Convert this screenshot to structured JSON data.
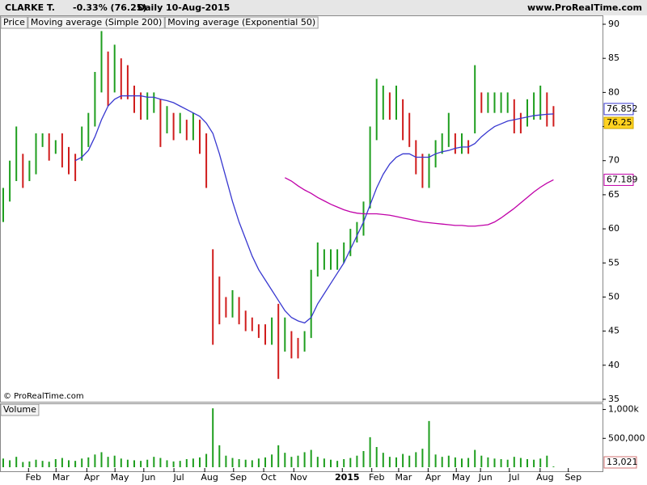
{
  "header": {
    "symbol": "CLARKE T.",
    "change": "-0.33% (76.25)",
    "period": "Daily",
    "date": "10-Aug-2015",
    "site": "www.ProRealTime.com",
    "copyright": "© ProRealTime.com"
  },
  "chart_data": [
    {
      "type": "ohlc",
      "xlim": [
        0,
        92
      ],
      "ylim": [
        35,
        90
      ],
      "yticks": [
        35,
        40,
        45,
        50,
        55,
        60,
        65,
        70,
        75,
        80,
        85,
        90
      ],
      "last_price": 76.25,
      "x": [
        0,
        1,
        2,
        3,
        4,
        5,
        6,
        7,
        8,
        9,
        10,
        11,
        12,
        13,
        14,
        15,
        16,
        17,
        18,
        19,
        20,
        21,
        22,
        23,
        24,
        25,
        26,
        27,
        28,
        29,
        30,
        31,
        32,
        33,
        34,
        35,
        36,
        37,
        38,
        39,
        40,
        41,
        42,
        43,
        44,
        45,
        46,
        47,
        48,
        49,
        50,
        51,
        52,
        53,
        54,
        55,
        56,
        57,
        58,
        59,
        60,
        61,
        62,
        63,
        64,
        65,
        66,
        67,
        68,
        69,
        70,
        71,
        72,
        73,
        74,
        75,
        76,
        77,
        78,
        79,
        80,
        81,
        82,
        83,
        84
      ],
      "series": [
        {
          "name": "Price",
          "color": "#1e9e1e",
          "down_color": "#d01c1c",
          "high": [
            66,
            70,
            75,
            71,
            70,
            74,
            74,
            74,
            73,
            74,
            72,
            71,
            75,
            77,
            83,
            89,
            86,
            87,
            85,
            84,
            81,
            80,
            80,
            80,
            79,
            78,
            77,
            77,
            76,
            77,
            76,
            74,
            57,
            53,
            50,
            51,
            50,
            48,
            47,
            46,
            46,
            47,
            49,
            47,
            45,
            44,
            45,
            54,
            58,
            57,
            57,
            57,
            58,
            60,
            61,
            64,
            75,
            82,
            81,
            80,
            81,
            79,
            77,
            73,
            71,
            71,
            73,
            74,
            77,
            74,
            74,
            73,
            84,
            80,
            80,
            80,
            80,
            80,
            79,
            77,
            79,
            80,
            81,
            80,
            78
          ],
          "low": [
            61,
            64,
            67,
            66,
            67,
            68,
            72,
            70,
            71,
            69,
            68,
            67,
            70,
            72,
            75,
            80,
            78,
            80,
            79,
            79,
            77,
            76,
            76,
            77,
            72,
            74,
            73,
            74,
            73,
            73,
            71,
            66,
            43,
            46,
            47,
            47,
            46,
            45,
            45,
            44,
            43,
            43,
            38,
            42,
            41,
            41,
            42,
            44,
            53,
            54,
            54,
            54,
            55,
            56,
            58,
            59,
            63,
            73,
            76,
            76,
            76,
            73,
            72,
            68,
            66,
            66,
            69,
            71,
            72,
            71,
            71,
            71,
            74,
            77,
            77,
            77,
            77,
            77,
            74,
            74,
            75,
            76,
            76,
            75,
            75
          ]
        },
        {
          "name": "Moving average (Simple 200)",
          "color": "#c000a8",
          "values": [
            null,
            null,
            null,
            null,
            null,
            null,
            null,
            null,
            null,
            null,
            null,
            null,
            null,
            null,
            null,
            null,
            null,
            null,
            null,
            null,
            null,
            null,
            null,
            null,
            null,
            null,
            null,
            null,
            null,
            null,
            null,
            null,
            null,
            null,
            null,
            null,
            null,
            null,
            null,
            null,
            null,
            null,
            null,
            67.5,
            67,
            66.3,
            65.7,
            65.2,
            64.6,
            64.1,
            63.6,
            63.2,
            62.8,
            62.5,
            62.3,
            62.2,
            62.2,
            62.2,
            62.1,
            62,
            61.8,
            61.6,
            61.4,
            61.2,
            61,
            60.9,
            60.8,
            60.7,
            60.6,
            60.5,
            60.5,
            60.4,
            60.4,
            60.5,
            60.6,
            61,
            61.6,
            62.3,
            63,
            63.8,
            64.6,
            65.4,
            66.1,
            66.7,
            67.189
          ]
        },
        {
          "name": "Moving average (Exponential 50)",
          "color": "#3838d0",
          "values": [
            null,
            null,
            null,
            null,
            null,
            null,
            null,
            null,
            null,
            null,
            null,
            70,
            70.5,
            71.5,
            73.5,
            76,
            78,
            79,
            79.5,
            79.5,
            79.5,
            79.5,
            79.3,
            79.3,
            79,
            78.8,
            78.5,
            78,
            77.5,
            77,
            76.5,
            75.5,
            74,
            71,
            67.5,
            64,
            61,
            58.5,
            56,
            54,
            52.5,
            51,
            49.5,
            48,
            47,
            46.5,
            46.2,
            47,
            49,
            50.5,
            52,
            53.5,
            55,
            57,
            59,
            61,
            63.5,
            66,
            68,
            69.5,
            70.5,
            71,
            71,
            70.5,
            70.5,
            70.5,
            71,
            71.3,
            71.5,
            71.8,
            72,
            72,
            72.5,
            73.5,
            74.3,
            75,
            75.4,
            75.8,
            76,
            76.2,
            76.4,
            76.6,
            76.7,
            76.8,
            76.852
          ]
        }
      ]
    },
    {
      "type": "bar",
      "xlim": [
        0,
        92
      ],
      "ylim": [
        0,
        1050000
      ],
      "yticks": [
        {
          "value": 500000,
          "label": "500,000"
        },
        {
          "value": 1000000,
          "label": "1,000k"
        }
      ],
      "xticks": [
        {
          "value": 4.6,
          "label": "Feb"
        },
        {
          "value": 8.8,
          "label": "Mar"
        },
        {
          "value": 13.5,
          "label": "Apr"
        },
        {
          "value": 17.8,
          "label": "May"
        },
        {
          "value": 22.2,
          "label": "Jun"
        },
        {
          "value": 26.8,
          "label": "Jul"
        },
        {
          "value": 31.5,
          "label": "Aug"
        },
        {
          "value": 35.9,
          "label": "Sep"
        },
        {
          "value": 40.5,
          "label": "Oct"
        },
        {
          "value": 45.1,
          "label": "Nov"
        },
        {
          "value": 52.5,
          "label": "2015"
        },
        {
          "value": 57,
          "label": "Feb"
        },
        {
          "value": 61.1,
          "label": "Mar"
        },
        {
          "value": 65.6,
          "label": "Apr"
        },
        {
          "value": 69.9,
          "label": "May"
        },
        {
          "value": 73.6,
          "label": "Jun"
        },
        {
          "value": 78,
          "label": "Jul"
        },
        {
          "value": 82.7,
          "label": "Aug"
        },
        {
          "value": 87,
          "label": "Sep"
        }
      ],
      "series": [
        {
          "name": "Volume",
          "color": "#1e9e1e",
          "values": [
            150000,
            120000,
            180000,
            90000,
            100000,
            130000,
            110000,
            95000,
            140000,
            160000,
            120000,
            110000,
            150000,
            170000,
            220000,
            260000,
            180000,
            200000,
            150000,
            130000,
            120000,
            110000,
            130000,
            180000,
            160000,
            120000,
            100000,
            110000,
            140000,
            150000,
            170000,
            230000,
            1020000,
            380000,
            200000,
            160000,
            140000,
            130000,
            120000,
            150000,
            170000,
            220000,
            380000,
            250000,
            180000,
            200000,
            260000,
            300000,
            180000,
            150000,
            130000,
            110000,
            140000,
            160000,
            200000,
            280000,
            520000,
            350000,
            250000,
            180000,
            170000,
            230000,
            200000,
            260000,
            320000,
            800000,
            220000,
            180000,
            200000,
            170000,
            150000,
            160000,
            300000,
            200000,
            170000,
            150000,
            140000,
            130000,
            180000,
            160000,
            140000,
            130000,
            150000,
            200000,
            13021
          ],
          "value_labels": [
            null,
            null,
            null,
            null,
            null,
            null,
            null,
            null,
            null,
            null,
            null,
            null,
            null,
            null,
            null,
            null,
            null,
            null,
            null,
            null,
            null,
            null,
            null,
            null,
            null,
            null,
            null,
            null,
            null,
            null,
            null,
            null,
            null,
            null,
            null,
            null,
            null,
            null,
            null,
            null,
            null,
            null,
            null,
            null,
            null,
            null,
            null,
            null,
            null,
            null,
            null,
            null,
            null,
            null,
            null,
            null,
            null,
            null,
            null,
            null,
            null,
            null,
            null,
            null,
            null,
            null,
            null,
            null,
            null,
            null,
            null,
            null,
            null,
            null,
            null,
            null,
            null,
            null,
            null,
            null,
            null,
            null,
            null,
            null,
            "13,021"
          ]
        }
      ]
    }
  ]
}
